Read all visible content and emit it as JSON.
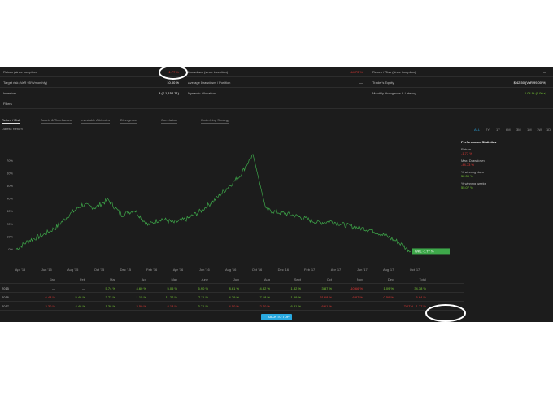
{
  "metrics": {
    "row1": [
      {
        "label": "Return (since inception)",
        "value": "-1.77 %",
        "tone": "red"
      },
      {
        "label": "Drawdown (since inception)",
        "value": "-44.73 %",
        "tone": "red"
      },
      {
        "label": "Return / Risk (since inception)",
        "value": "—",
        "tone": "plain"
      }
    ],
    "row2": [
      {
        "label": "Target risk (VaR 95%/monthly)",
        "value": "10.00 %",
        "tone": "white"
      },
      {
        "label": "Average Drawdown / Position",
        "value": "—",
        "tone": "plain"
      },
      {
        "label": "Trader's Equity",
        "value": "$ 42.50 (VaR 99.00 %)",
        "tone": "white"
      }
    ],
    "row3": [
      {
        "label": "Investors",
        "value": "3 ($ 1,154.71)",
        "tone": "white"
      },
      {
        "label": "Dynamic Allocation",
        "value": "—",
        "tone": "plain"
      },
      {
        "label": "Monthly divergence & Latency",
        "value": "0.04 % (0.00 s)",
        "tone": "green"
      }
    ],
    "filters_label": "Filters"
  },
  "tabs": [
    "Return / Risk",
    "Assets & Timeframes",
    "Investable Attributes",
    "Divergence",
    "Correlation",
    "Underlying Strategy"
  ],
  "subtitle": "Daresk Return",
  "ranges": [
    "ALL",
    "2Y",
    "1Y",
    "6M",
    "3M",
    "1M",
    "1W",
    "1D"
  ],
  "active_range": "ALL",
  "stats": {
    "title": "Performance Statistics",
    "items": [
      {
        "label": "Return",
        "value": "-1.77 %",
        "tone": "red"
      },
      {
        "label": "Max. Drawdown",
        "value": "-44.73 %",
        "tone": "red"
      },
      {
        "label": "% winning days",
        "value": "52.39 %",
        "tone": "green"
      },
      {
        "label": "% winning weeks",
        "value": "55.07 %",
        "tone": "green"
      }
    ]
  },
  "chart_data": {
    "type": "line",
    "series": [
      {
        "name": "",
        "color": "#3ea84a",
        "x": [
          "Apr '15",
          "May '15",
          "Jun '15",
          "Jul '15",
          "Aug '15",
          "Sep '15",
          "Oct '15",
          "Nov '15",
          "Dec '15",
          "Jan '16",
          "Feb '16",
          "Mar '16",
          "Apr '16",
          "May '16",
          "Jun '16",
          "Jul '16",
          "Aug '16",
          "Sep '16",
          "Oct '16",
          "Nov '16",
          "Dec '16",
          "Jan '17",
          "Feb '17",
          "Mar '17",
          "Apr '17",
          "May '17",
          "Jun '17",
          "Jul '17",
          "Aug '17",
          "Sep '17",
          "Oct '17"
        ],
        "values": [
          0,
          7,
          11,
          17,
          27,
          35,
          33,
          39,
          27,
          31,
          19,
          24,
          21,
          24,
          30,
          38,
          48,
          58,
          75,
          31,
          29,
          27,
          24,
          21,
          22,
          19,
          17,
          15,
          11,
          6,
          -2
        ]
      }
    ],
    "x_tick_labels": [
      "Apr '15",
      "Jun '15",
      "Aug '15",
      "Oct '15",
      "Dec '15",
      "Feb '16",
      "Apr '16",
      "Jun '16",
      "Aug '16",
      "Oct '16",
      "Dec '16",
      "Feb '17",
      "Apr '17",
      "Jun '17",
      "Aug '17",
      "Oct '17"
    ],
    "y_tick_labels": [
      "0%",
      "10%",
      "20%",
      "30%",
      "40%",
      "50%",
      "60%",
      "70%"
    ],
    "ylim": [
      -3,
      80
    ],
    "end_label": "WKL -1.77 %",
    "grid": false
  },
  "monthly": {
    "headers": [
      "Jan",
      "Feb",
      "Mar",
      "Apr",
      "May",
      "June",
      "July",
      "Aug",
      "Sept",
      "Oct",
      "Nov",
      "Dec",
      "Total"
    ],
    "rows": [
      {
        "year": "2015",
        "cells": [
          "—",
          "—",
          "5.74 %",
          "4.60 %",
          "5.05 %",
          "5.90 %",
          "8.61 %",
          "4.32 %",
          "1.82 %",
          "3.87 %",
          "-10.66 %",
          "1.09 %",
          "34.38 %"
        ]
      },
      {
        "year": "2016",
        "cells": [
          "-6.43 %",
          "5.48 %",
          "3.72 %",
          "1.15 %",
          "11.22 %",
          "7.11 %",
          "4.29 %",
          "7.18 %",
          "1.59 %",
          "-31.68 %",
          "-6.87 %",
          "-0.59 %",
          "-6.64 %"
        ]
      },
      {
        "year": "2017",
        "cells": [
          "-3.30 %",
          "4.48 %",
          "1.38 %",
          "-3.50 %",
          "-8.13 %",
          "3.71 %",
          "-4.50 %",
          "-2.70 %",
          "6.81 %",
          "-6.61 %",
          "—",
          "—",
          "TOTAL -1.77 %"
        ]
      }
    ]
  },
  "back_to_top": "BACK TO TOP"
}
